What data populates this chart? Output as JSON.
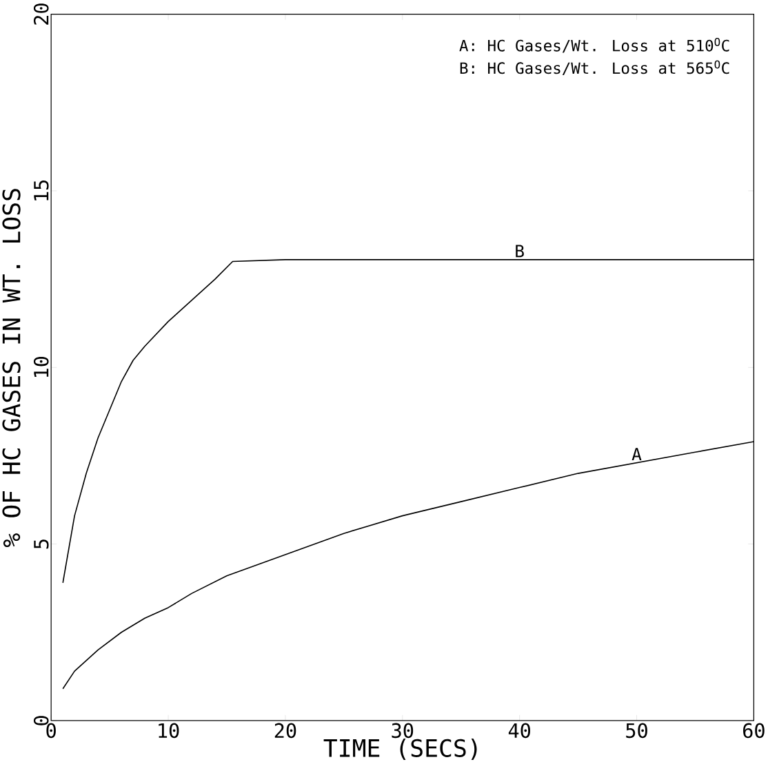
{
  "chart_data": {
    "type": "line",
    "xlabel": "TIME (SECS)",
    "ylabel": "% OF HC GASES IN WT. LOSS",
    "xlim": [
      0,
      60
    ],
    "ylim": [
      0,
      20
    ],
    "xticks": [
      0,
      10,
      20,
      30,
      40,
      50,
      60
    ],
    "yticks": [
      0,
      5,
      10,
      15,
      20
    ],
    "annotations": [
      "A:  HC Gases/Wt. Loss at 510$^{O}$C",
      "B:  HC Gases/Wt. Loss at 565$^{O}$C"
    ],
    "series": [
      {
        "name": "A",
        "color": "#000000",
        "x": [
          1,
          2,
          4,
          6,
          8,
          10,
          12,
          15,
          20,
          25,
          30,
          35,
          40,
          45,
          50,
          55,
          60
        ],
        "values": [
          0.9,
          1.4,
          2.0,
          2.5,
          2.9,
          3.2,
          3.6,
          4.1,
          4.7,
          5.3,
          5.8,
          6.2,
          6.6,
          7.0,
          7.3,
          7.6,
          7.9
        ]
      },
      {
        "name": "B",
        "color": "#000000",
        "x": [
          1,
          2,
          3,
          4,
          5,
          6,
          7,
          8,
          10,
          12,
          14,
          15.5,
          20,
          30,
          40,
          50,
          60
        ],
        "values": [
          3.9,
          5.8,
          7.0,
          8.0,
          8.8,
          9.6,
          10.2,
          10.6,
          11.3,
          11.9,
          12.5,
          13.0,
          13.05,
          13.05,
          13.05,
          13.05,
          13.05
        ]
      }
    ]
  }
}
